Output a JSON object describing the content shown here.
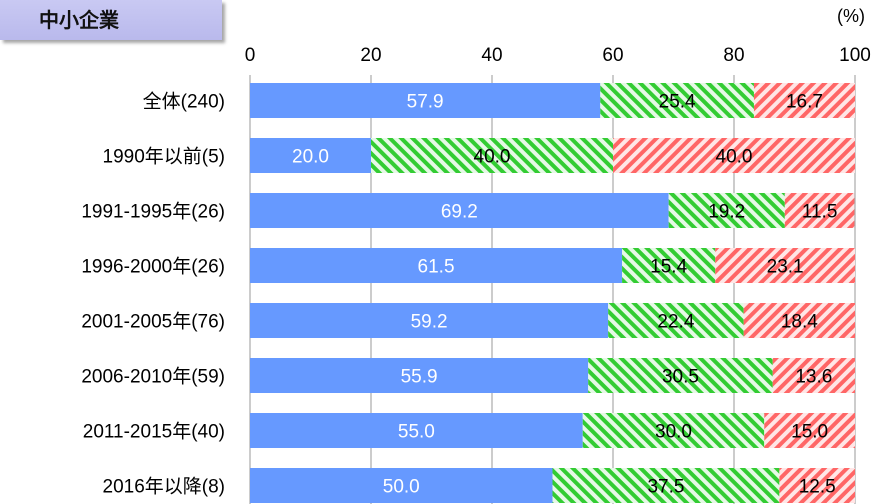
{
  "badge_label": "中小企業",
  "unit_label": "(%)",
  "colors": {
    "blue": "#6699ff",
    "green_stripe": "#33cc33",
    "green_bg": "#e6f9e6",
    "red_stripe": "#ff6666",
    "red_bg": "#ffe6e6",
    "grid": "#999999"
  },
  "chart_data": {
    "type": "bar",
    "orientation": "horizontal",
    "stacked": true,
    "xlim": [
      0,
      100
    ],
    "x_ticks": [
      "0",
      "20",
      "40",
      "60",
      "80",
      "100"
    ],
    "categories": [
      "全体(240)",
      "1990年以前(5)",
      "1991-1995年(26)",
      "1996-2000年(26)",
      "2001-2005年(76)",
      "2006-2010年(59)",
      "2011-2015年(40)",
      "2016年以降(8)"
    ],
    "series": [
      {
        "values": [
          57.9,
          20.0,
          69.2,
          61.5,
          59.2,
          55.9,
          55.0,
          50.0
        ],
        "labels": [
          "57.9",
          "20.0",
          "69.2",
          "61.5",
          "59.2",
          "55.9",
          "55.0",
          "50.0"
        ]
      },
      {
        "values": [
          25.4,
          40.0,
          19.2,
          15.4,
          22.4,
          30.5,
          30.0,
          37.5
        ],
        "labels": [
          "25.4",
          "40.0",
          "19.2",
          "15.4",
          "22.4",
          "30.5",
          "30.0",
          "37.5"
        ]
      },
      {
        "values": [
          16.7,
          40.0,
          11.5,
          23.1,
          18.4,
          13.6,
          15.0,
          12.5
        ],
        "labels": [
          "16.7",
          "40.0",
          "11.5",
          "23.1",
          "18.4",
          "13.6",
          "15.0",
          "12.5"
        ]
      }
    ]
  }
}
